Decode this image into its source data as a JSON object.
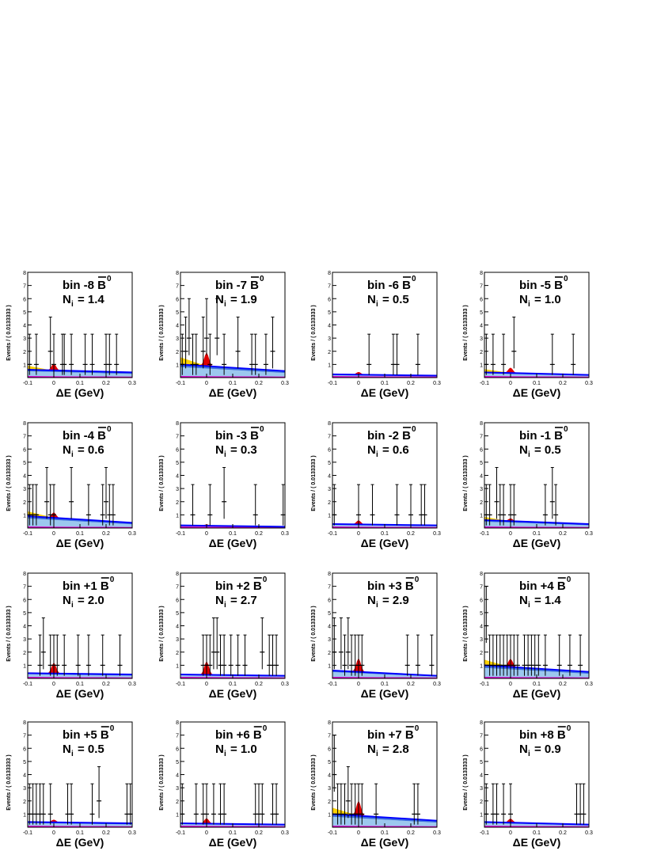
{
  "chart_data": [
    {
      "type": "scatter",
      "title": "bin -8",
      "title_symbol": "B̄⁰",
      "ni_label": "N",
      "ni_sub": "i",
      "ni_value": "= 1.4",
      "xlabel": "ΔE (GeV)",
      "ylabel": "Events / ( 0.0133333 )",
      "xlim": [
        -0.1,
        0.3
      ],
      "ylim": [
        0,
        8
      ],
      "xticks": [
        "-0.1",
        "0",
        "0.1",
        "0.2",
        "0.3"
      ],
      "yticks": [
        "1",
        "2",
        "3",
        "4",
        "5",
        "6",
        "7",
        "8"
      ],
      "points": {
        "x": [
          -0.093,
          -0.067,
          -0.013,
          0.0,
          0.033,
          0.04,
          0.067,
          0.12,
          0.147,
          0.2,
          0.213,
          0.24
        ],
        "y": [
          1,
          1,
          2,
          1,
          1,
          1,
          1,
          1,
          1,
          1,
          1,
          1
        ]
      },
      "peak": 0.5,
      "blue_start": 0.6,
      "blue_end": 0.4,
      "yellow": 0.5
    },
    {
      "type": "scatter",
      "title": "bin -7",
      "title_symbol": "B̄⁰",
      "ni_label": "N",
      "ni_sub": "i",
      "ni_value": "= 1.9",
      "xlabel": "ΔE (GeV)",
      "ylabel": "Events / ( 0.0133333 )",
      "xlim": [
        -0.1,
        0.3
      ],
      "ylim": [
        0,
        8
      ],
      "xticks": [
        "-0.1",
        "0",
        "0.1",
        "0.2",
        "0.3"
      ],
      "yticks": [
        "1",
        "2",
        "3",
        "4",
        "5",
        "6",
        "7",
        "8"
      ],
      "points": {
        "x": [
          -0.093,
          -0.08,
          -0.067,
          -0.053,
          -0.04,
          -0.013,
          0.0,
          0.013,
          0.04,
          0.067,
          0.12,
          0.173,
          0.187,
          0.227,
          0.253
        ],
        "y": [
          1,
          2,
          3,
          1,
          1,
          2,
          3,
          1,
          3,
          1,
          2,
          1,
          1,
          1,
          2
        ]
      },
      "peak": 1.0,
      "blue_start": 1.0,
      "blue_end": 0.5,
      "yellow": 0.9
    },
    {
      "type": "scatter",
      "title": "bin -6",
      "title_symbol": "B̄⁰",
      "ni_label": "N",
      "ni_sub": "i",
      "ni_value": "= 0.5",
      "xlabel": "ΔE (GeV)",
      "ylabel": "Events / ( 0.0133333 )",
      "xlim": [
        -0.1,
        0.3
      ],
      "ylim": [
        0,
        8
      ],
      "xticks": [
        "-0.1",
        "0",
        "0.1",
        "0.2",
        "0.3"
      ],
      "yticks": [
        "1",
        "2",
        "3",
        "4",
        "5",
        "6",
        "7",
        "8"
      ],
      "points": {
        "x": [
          0.04,
          0.133,
          0.147,
          0.227
        ],
        "y": [
          1,
          1,
          1,
          1
        ]
      },
      "peak": 0.2,
      "blue_start": 0.25,
      "blue_end": 0.15,
      "yellow": 0.0
    },
    {
      "type": "scatter",
      "title": "bin -5",
      "title_symbol": "B̄⁰",
      "ni_label": "N",
      "ni_sub": "i",
      "ni_value": "= 1.0",
      "xlabel": "ΔE (GeV)",
      "ylabel": "Events / ( 0.0133333 )",
      "xlim": [
        -0.1,
        0.3
      ],
      "ylim": [
        0,
        8
      ],
      "xticks": [
        "-0.1",
        "0",
        "0.1",
        "0.2",
        "0.3"
      ],
      "yticks": [
        "1",
        "2",
        "3",
        "4",
        "5",
        "6",
        "7",
        "8"
      ],
      "points": {
        "x": [
          -0.093,
          -0.067,
          -0.027,
          0.013,
          0.16,
          0.24
        ],
        "y": [
          1,
          1,
          1,
          2,
          1,
          1
        ]
      },
      "peak": 0.4,
      "blue_start": 0.4,
      "blue_end": 0.2,
      "yellow": 0.4
    },
    {
      "type": "scatter",
      "title": "bin -4",
      "title_symbol": "B̄⁰",
      "ni_label": "N",
      "ni_sub": "i",
      "ni_value": "= 0.6",
      "xlabel": "ΔE (GeV)",
      "ylabel": "Events / ( 0.0133333 )",
      "xlim": [
        -0.1,
        0.3
      ],
      "ylim": [
        0,
        8
      ],
      "xticks": [
        "-0.1",
        "0",
        "0.1",
        "0.2",
        "0.3"
      ],
      "yticks": [
        "1",
        "2",
        "3",
        "4",
        "5",
        "6",
        "7",
        "8"
      ],
      "points": {
        "x": [
          -0.093,
          -0.08,
          -0.067,
          -0.027,
          -0.013,
          0.0,
          0.067,
          0.133,
          0.187,
          0.2,
          0.213,
          0.227
        ],
        "y": [
          1,
          1,
          1,
          2,
          1,
          1,
          2,
          1,
          1,
          2,
          1,
          1
        ]
      },
      "peak": 0.4,
      "blue_start": 0.9,
      "blue_end": 0.4,
      "yellow": 0.6
    },
    {
      "type": "scatter",
      "title": "bin -3",
      "title_symbol": "B̄⁰",
      "ni_label": "N",
      "ni_sub": "i",
      "ni_value": "= 0.3",
      "xlabel": "ΔE (GeV)",
      "ylabel": "Events / ( 0.0133333 )",
      "xlim": [
        -0.1,
        0.3
      ],
      "ylim": [
        0,
        8
      ],
      "xticks": [
        "-0.1",
        "0",
        "0.1",
        "0.2",
        "0.3"
      ],
      "yticks": [
        "1",
        "2",
        "3",
        "4",
        "5",
        "6",
        "7",
        "8"
      ],
      "points": {
        "x": [
          -0.053,
          0.013,
          0.067,
          0.187,
          0.293
        ],
        "y": [
          1,
          1,
          2,
          1,
          1
        ]
      },
      "peak": 0.1,
      "blue_start": 0.2,
      "blue_end": 0.1,
      "yellow": 0.0
    },
    {
      "type": "scatter",
      "title": "bin -2",
      "title_symbol": "B̄⁰",
      "ni_label": "N",
      "ni_sub": "i",
      "ni_value": "= 0.6",
      "xlabel": "ΔE (GeV)",
      "ylabel": "Events / ( 0.0133333 )",
      "xlim": [
        -0.1,
        0.3
      ],
      "ylim": [
        0,
        8
      ],
      "xticks": [
        "-0.1",
        "0",
        "0.1",
        "0.2",
        "0.3"
      ],
      "yticks": [
        "1",
        "2",
        "3",
        "4",
        "5",
        "6",
        "7",
        "8"
      ],
      "points": {
        "x": [
          -0.093,
          0.0,
          0.053,
          0.147,
          0.2,
          0.24,
          0.253
        ],
        "y": [
          1,
          1,
          1,
          1,
          1,
          1,
          1
        ]
      },
      "peak": 0.3,
      "blue_start": 0.3,
      "blue_end": 0.2,
      "yellow": 0.0
    },
    {
      "type": "scatter",
      "title": "bin -1",
      "title_symbol": "B̄⁰",
      "ni_label": "N",
      "ni_sub": "i",
      "ni_value": "= 0.5",
      "xlabel": "ΔE (GeV)",
      "ylabel": "Events / ( 0.0133333 )",
      "xlim": [
        -0.1,
        0.3
      ],
      "ylim": [
        0,
        8
      ],
      "xticks": [
        "-0.1",
        "0",
        "0.1",
        "0.2",
        "0.3"
      ],
      "yticks": [
        "1",
        "2",
        "3",
        "4",
        "5",
        "6",
        "7",
        "8"
      ],
      "points": {
        "x": [
          -0.093,
          -0.08,
          -0.053,
          -0.04,
          -0.027,
          0.0,
          0.013,
          0.133,
          0.16,
          0.173
        ],
        "y": [
          1,
          1,
          2,
          1,
          1,
          1,
          1,
          1,
          2,
          1
        ]
      },
      "peak": 0.2,
      "blue_start": 0.6,
      "blue_end": 0.3,
      "yellow": 0.4
    },
    {
      "type": "scatter",
      "title": "bin +1",
      "title_symbol": "B̄⁰",
      "ni_label": "N",
      "ni_sub": "i",
      "ni_value": "= 2.0",
      "xlabel": "ΔE (GeV)",
      "ylabel": "Events / ( 0.0133333 )",
      "xlim": [
        -0.1,
        0.3
      ],
      "ylim": [
        0,
        8
      ],
      "xticks": [
        "-0.1",
        "0",
        "0.1",
        "0.2",
        "0.3"
      ],
      "yticks": [
        "1",
        "2",
        "3",
        "4",
        "5",
        "6",
        "7",
        "8"
      ],
      "points": {
        "x": [
          -0.053,
          -0.04,
          -0.013,
          0.0,
          0.013,
          0.04,
          0.093,
          0.133,
          0.187,
          0.253
        ],
        "y": [
          1,
          2,
          1,
          1,
          1,
          1,
          1,
          1,
          1,
          1
        ]
      },
      "peak": 0.8,
      "blue_start": 0.4,
      "blue_end": 0.3,
      "yellow": 0.0
    },
    {
      "type": "scatter",
      "title": "bin +2",
      "title_symbol": "B̄⁰",
      "ni_label": "N",
      "ni_sub": "i",
      "ni_value": "= 2.7",
      "xlabel": "ΔE (GeV)",
      "ylabel": "Events / ( 0.0133333 )",
      "xlim": [
        -0.1,
        0.3
      ],
      "ylim": [
        0,
        8
      ],
      "xticks": [
        "-0.1",
        "0",
        "0.1",
        "0.2",
        "0.3"
      ],
      "yticks": [
        "1",
        "2",
        "3",
        "4",
        "5",
        "6",
        "7",
        "8"
      ],
      "points": {
        "x": [
          -0.013,
          0.0,
          0.013,
          0.027,
          0.04,
          0.053,
          0.067,
          0.093,
          0.12,
          0.147,
          0.213,
          0.24,
          0.253,
          0.267
        ],
        "y": [
          1,
          1,
          1,
          2,
          2,
          1,
          1,
          1,
          1,
          1,
          2,
          1,
          1,
          1
        ]
      },
      "peak": 1.0,
      "blue_start": 0.3,
      "blue_end": 0.2,
      "yellow": 0.0
    },
    {
      "type": "scatter",
      "title": "bin +3",
      "title_symbol": "B̄⁰",
      "ni_label": "N",
      "ni_sub": "i",
      "ni_value": "= 2.9",
      "xlabel": "ΔE (GeV)",
      "ylabel": "Events / ( 0.0133333 )",
      "xlim": [
        -0.1,
        0.3
      ],
      "ylim": [
        0,
        8
      ],
      "xticks": [
        "-0.1",
        "0",
        "0.1",
        "0.2",
        "0.3"
      ],
      "yticks": [
        "1",
        "2",
        "3",
        "4",
        "5",
        "6",
        "7",
        "8"
      ],
      "points": {
        "x": [
          -0.093,
          -0.067,
          -0.053,
          -0.04,
          -0.027,
          -0.013,
          0.0,
          0.013,
          0.187,
          0.227,
          0.28
        ],
        "y": [
          2,
          2,
          1,
          2,
          1,
          1,
          1,
          1,
          1,
          1,
          1
        ]
      },
      "peak": 1.0,
      "blue_start": 0.6,
      "blue_end": 0.2,
      "yellow": 0.0
    },
    {
      "type": "scatter",
      "title": "bin +4",
      "title_symbol": "B̄⁰",
      "ni_label": "N",
      "ni_sub": "i",
      "ni_value": "= 1.4",
      "xlabel": "ΔE (GeV)",
      "ylabel": "Events / ( 0.0133333 )",
      "xlim": [
        -0.1,
        0.3
      ],
      "ylim": [
        0,
        8
      ],
      "xticks": [
        "-0.1",
        "0",
        "0.1",
        "0.2",
        "0.3"
      ],
      "yticks": [
        "1",
        "2",
        "3",
        "4",
        "5",
        "6",
        "7",
        "8"
      ],
      "points": {
        "x": [
          -0.093,
          -0.08,
          -0.067,
          -0.053,
          -0.04,
          -0.027,
          -0.013,
          0.0,
          0.013,
          0.027,
          0.053,
          0.067,
          0.08,
          0.093,
          0.107,
          0.133,
          0.187,
          0.227,
          0.267
        ],
        "y": [
          4,
          1,
          1,
          1,
          1,
          1,
          1,
          1,
          1,
          1,
          1,
          1,
          1,
          1,
          1,
          1,
          1,
          1,
          1
        ]
      },
      "peak": 0.6,
      "blue_start": 1.0,
      "blue_end": 0.5,
      "yellow": 0.7
    },
    {
      "type": "scatter",
      "title": "bin +5",
      "title_symbol": "B̄⁰",
      "ni_label": "N",
      "ni_sub": "i",
      "ni_value": "= 0.5",
      "xlabel": "ΔE (GeV)",
      "ylabel": "Events / ( 0.0133333 )",
      "xlim": [
        -0.1,
        0.3
      ],
      "ylim": [
        0,
        8
      ],
      "xticks": [
        "-0.1",
        "0",
        "0.1",
        "0.2",
        "0.3"
      ],
      "yticks": [
        "1",
        "2",
        "3",
        "4",
        "5",
        "6",
        "7",
        "8"
      ],
      "points": {
        "x": [
          -0.093,
          -0.08,
          -0.067,
          -0.053,
          -0.04,
          -0.013,
          0.053,
          0.067,
          0.147,
          0.173,
          0.28,
          0.293
        ],
        "y": [
          1,
          1,
          1,
          1,
          1,
          1,
          1,
          1,
          1,
          2,
          1,
          1
        ]
      },
      "peak": 0.2,
      "blue_start": 0.4,
      "blue_end": 0.3,
      "yellow": 0.0
    },
    {
      "type": "scatter",
      "title": "bin +6",
      "title_symbol": "B̄⁰",
      "ni_label": "N",
      "ni_sub": "i",
      "ni_value": "= 1.0",
      "xlabel": "ΔE (GeV)",
      "ylabel": "Events / ( 0.0133333 )",
      "xlim": [
        -0.1,
        0.3
      ],
      "ylim": [
        0,
        8
      ],
      "xticks": [
        "-0.1",
        "0",
        "0.1",
        "0.2",
        "0.3"
      ],
      "yticks": [
        "1",
        "2",
        "3",
        "4",
        "5",
        "6",
        "7",
        "8"
      ],
      "points": {
        "x": [
          -0.093,
          -0.04,
          -0.013,
          0.0,
          0.027,
          0.053,
          0.067,
          0.187,
          0.2,
          0.213,
          0.253,
          0.267
        ],
        "y": [
          1,
          1,
          1,
          1,
          1,
          1,
          1,
          1,
          1,
          1,
          1,
          1
        ]
      },
      "peak": 0.4,
      "blue_start": 0.3,
      "blue_end": 0.2,
      "yellow": 0.0
    },
    {
      "type": "scatter",
      "title": "bin +7",
      "title_symbol": "B̄⁰",
      "ni_label": "N",
      "ni_sub": "i",
      "ni_value": "= 2.8",
      "xlabel": "ΔE (GeV)",
      "ylabel": "Events / ( 0.0133333 )",
      "xlim": [
        -0.1,
        0.3
      ],
      "ylim": [
        0,
        8
      ],
      "xticks": [
        "-0.1",
        "0",
        "0.1",
        "0.2",
        "0.3"
      ],
      "yticks": [
        "1",
        "2",
        "3",
        "4",
        "5",
        "6",
        "7",
        "8"
      ],
      "points": {
        "x": [
          -0.093,
          -0.08,
          -0.067,
          -0.053,
          -0.04,
          -0.027,
          -0.013,
          0.0,
          0.013,
          0.067,
          0.213,
          0.227
        ],
        "y": [
          4,
          1,
          1,
          1,
          2,
          1,
          1,
          1,
          1,
          1,
          1,
          1
        ]
      },
      "peak": 1.1,
      "blue_start": 1.0,
      "blue_end": 0.5,
      "yellow": 0.8
    },
    {
      "type": "scatter",
      "title": "bin +8",
      "title_symbol": "B̄⁰",
      "ni_label": "N",
      "ni_sub": "i",
      "ni_value": "= 0.9",
      "xlabel": "ΔE (GeV)",
      "ylabel": "Events / ( 0.0133333 )",
      "xlim": [
        -0.1,
        0.3
      ],
      "ylim": [
        0,
        8
      ],
      "xticks": [
        "-0.1",
        "0",
        "0.1",
        "0.2",
        "0.3"
      ],
      "yticks": [
        "1",
        "2",
        "3",
        "4",
        "5",
        "6",
        "7",
        "8"
      ],
      "points": {
        "x": [
          -0.093,
          -0.067,
          -0.053,
          -0.027,
          0.0,
          0.253,
          0.267,
          0.28
        ],
        "y": [
          1,
          1,
          1,
          1,
          1,
          1,
          1,
          1
        ]
      },
      "peak": 0.3,
      "blue_start": 0.4,
      "blue_end": 0.2,
      "yellow": 0.0
    }
  ],
  "colors": {
    "axis": "#000000",
    "blue_line": "#0000ff",
    "blue_fill": "#3d6fe0",
    "light_fill": "#9cc8ee",
    "yellow_fill": "#ffd200",
    "magenta_fill": "#d400c8",
    "red_peak": "#e00000",
    "points": "#000000"
  }
}
